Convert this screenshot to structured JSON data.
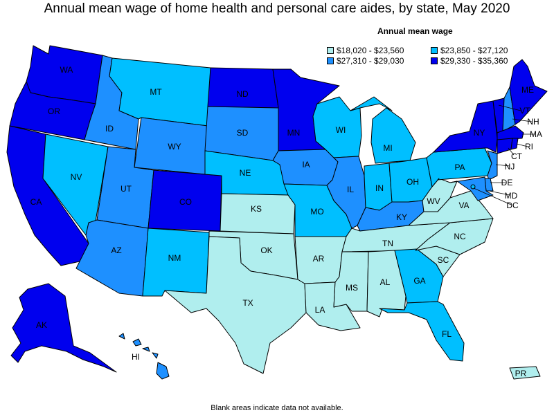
{
  "title": "Annual mean wage of home health and personal care aides, by state, May 2020",
  "legend": {
    "title": "Annual mean wage",
    "items": [
      {
        "label": "$18,020 - $23,560",
        "color": "#b0eeee"
      },
      {
        "label": "$23,850 - $27,120",
        "color": "#00bfff"
      },
      {
        "label": "$27,310 - $29,030",
        "color": "#1e90ff"
      },
      {
        "label": "$29,330 - $35,360",
        "color": "#0000ee"
      }
    ]
  },
  "footnote": "Blank areas indicate data not available.",
  "states": {
    "WA": {
      "label": "WA",
      "wage_class": 3
    },
    "OR": {
      "label": "OR",
      "wage_class": 3
    },
    "CA": {
      "label": "CA",
      "wage_class": 3
    },
    "ID": {
      "label": "ID",
      "wage_class": 2
    },
    "NV": {
      "label": "NV",
      "wage_class": 1
    },
    "MT": {
      "label": "MT",
      "wage_class": 1
    },
    "WY": {
      "label": "WY",
      "wage_class": 2
    },
    "UT": {
      "label": "UT",
      "wage_class": 2
    },
    "AZ": {
      "label": "AZ",
      "wage_class": 2
    },
    "CO": {
      "label": "CO",
      "wage_class": 3
    },
    "NM": {
      "label": "NM",
      "wage_class": 1
    },
    "ND": {
      "label": "ND",
      "wage_class": 3
    },
    "SD": {
      "label": "SD",
      "wage_class": 2
    },
    "NE": {
      "label": "NE",
      "wage_class": 1
    },
    "KS": {
      "label": "KS",
      "wage_class": 0
    },
    "OK": {
      "label": "OK",
      "wage_class": 0
    },
    "TX": {
      "label": "TX",
      "wage_class": 0
    },
    "MN": {
      "label": "MN",
      "wage_class": 3
    },
    "IA": {
      "label": "IA",
      "wage_class": 2
    },
    "MO": {
      "label": "MO",
      "wage_class": 1
    },
    "AR": {
      "label": "AR",
      "wage_class": 0
    },
    "LA": {
      "label": "LA",
      "wage_class": 0
    },
    "WI": {
      "label": "WI",
      "wage_class": 1
    },
    "IL": {
      "label": "IL",
      "wage_class": 2
    },
    "MI": {
      "label": "MI",
      "wage_class": 1
    },
    "IN": {
      "label": "IN",
      "wage_class": 1
    },
    "OH": {
      "label": "OH",
      "wage_class": 1
    },
    "KY": {
      "label": "KY",
      "wage_class": 2
    },
    "TN": {
      "label": "TN",
      "wage_class": 0
    },
    "MS": {
      "label": "MS",
      "wage_class": 0
    },
    "AL": {
      "label": "AL",
      "wage_class": 0
    },
    "GA": {
      "label": "GA",
      "wage_class": 1
    },
    "FL": {
      "label": "FL",
      "wage_class": 1
    },
    "SC": {
      "label": "SC",
      "wage_class": 0
    },
    "NC": {
      "label": "NC",
      "wage_class": 0
    },
    "VA": {
      "label": "VA",
      "wage_class": 0
    },
    "WV": {
      "label": "WV",
      "wage_class": 0
    },
    "PA": {
      "label": "PA",
      "wage_class": 1
    },
    "NY": {
      "label": "NY",
      "wage_class": 3
    },
    "ME": {
      "label": "ME",
      "wage_class": 3
    },
    "VT": {
      "label": "VT",
      "wage_class": 3
    },
    "NH": {
      "label": "NH",
      "wage_class": 2
    },
    "MA": {
      "label": "MA",
      "wage_class": 3
    },
    "RI": {
      "label": "RI",
      "wage_class": 3
    },
    "CT": {
      "label": "CT",
      "wage_class": 3
    },
    "NJ": {
      "label": "NJ",
      "wage_class": 2
    },
    "DE": {
      "label": "DE",
      "wage_class": 2
    },
    "MD": {
      "label": "MD",
      "wage_class": 2
    },
    "DC": {
      "label": "DC",
      "wage_class": 1
    },
    "AK": {
      "label": "AK",
      "wage_class": 3
    },
    "HI": {
      "label": "HI",
      "wage_class": 2
    },
    "PR": {
      "label": "PR",
      "wage_class": 0
    }
  }
}
